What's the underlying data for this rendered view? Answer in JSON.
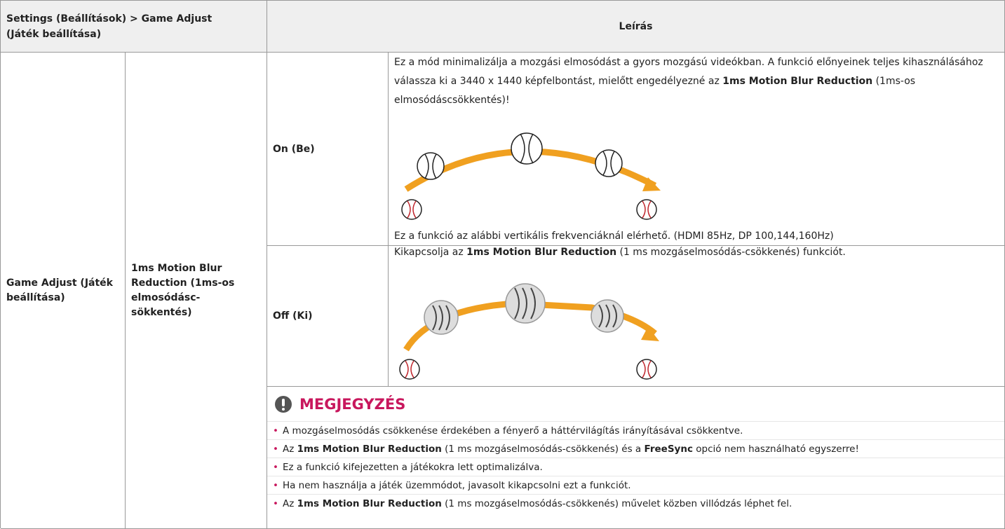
{
  "header": {
    "settings": "Settings (Beállítások) > Game Adjust (Játék beállítása)",
    "description": "Leírás"
  },
  "rows": {
    "group": "Game Adjust (Játék beállítása)",
    "feature": "1ms Motion Blur Reduction (1ms-os elmosódásc-sökkentés)",
    "on": {
      "label": "On (Be)",
      "desc": [
        "Ez a mód minimalizálja a mozgási elmosódást a gyors mozgású videókban. A funkció előnyeinek teljes kihasználásához válassza ki a 3440 x 1440 képfelbontást, mielőtt engedélyezné az ",
        "1ms Motion Blur Reduction",
        " (1ms-os elmosódáscsökkentés)!"
      ],
      "footnote": "Ez a funkció az alábbi vertikális frekvenciáknál elérhető. (HDMI 85Hz, DP 100,144,160Hz)"
    },
    "off": {
      "label": "Off (Ki)",
      "desc": [
        "Kikapcsolja az ",
        "1ms Motion Blur Reduction",
        " (1 ms mozgáselmosódás-csökkenés) funkciót."
      ]
    }
  },
  "note": {
    "title": "MEGJEGYZÉS",
    "items": [
      [
        "A mozgáselmosódás csökkenése érdekében a fényerő a háttérvilágítás irányításával csökkentve."
      ],
      [
        "Az ",
        "1ms Motion Blur Reduction",
        " (1 ms mozgáselmosódás-csökkenés) és a ",
        "FreeSync",
        " opció nem használható egyszerre!"
      ],
      [
        "Ez a funkció kifejezetten a játékokra lett optimalizálva."
      ],
      [
        "Ha nem használja a játék üzemmódot, javasolt kikapcsolni ezt a funkciót."
      ],
      [
        "Az ",
        "1ms Motion Blur Reduction",
        " (1 ms mozgáselmosódás-csökkenés) művelet közben villódzás léphet fel."
      ]
    ]
  }
}
